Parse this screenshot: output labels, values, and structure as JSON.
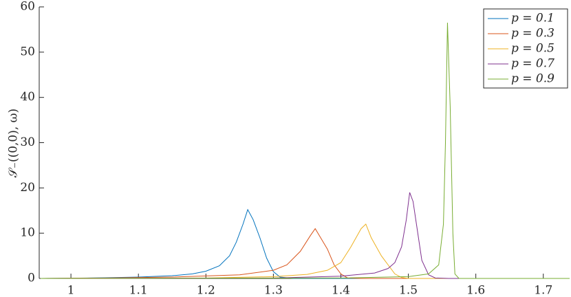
{
  "chart_data": {
    "type": "line",
    "ylabel": "𝒮₋((0,0), ω)",
    "xlim": [
      0.953,
      1.739
    ],
    "ylim": [
      0,
      60
    ],
    "xticks": [
      1,
      1.1,
      1.2,
      1.3,
      1.4,
      1.5,
      1.6,
      1.7
    ],
    "yticks": [
      0,
      10,
      20,
      30,
      40,
      50,
      60
    ],
    "legend": "top-right",
    "series": [
      {
        "name": "p = 0.1",
        "color": "#0072bd",
        "x": [
          0.955,
          1.0,
          1.05,
          1.1,
          1.15,
          1.18,
          1.2,
          1.22,
          1.235,
          1.245,
          1.255,
          1.262,
          1.27,
          1.28,
          1.29,
          1.3,
          1.31,
          1.33,
          1.739
        ],
        "values": [
          0,
          0.05,
          0.15,
          0.3,
          0.6,
          1.0,
          1.6,
          2.8,
          5,
          8,
          12,
          15.2,
          13,
          9,
          4.5,
          1.5,
          0.3,
          0,
          0
        ]
      },
      {
        "name": "p = 0.3",
        "color": "#d95319",
        "x": [
          0.955,
          1.05,
          1.15,
          1.25,
          1.3,
          1.32,
          1.34,
          1.355,
          1.362,
          1.37,
          1.38,
          1.39,
          1.4,
          1.41,
          1.43,
          1.739
        ],
        "values": [
          0,
          0.1,
          0.3,
          0.8,
          1.8,
          3,
          6,
          9.5,
          11,
          9,
          6.5,
          3,
          1,
          0.1,
          0,
          0
        ]
      },
      {
        "name": "p = 0.5",
        "color": "#edb120",
        "x": [
          0.955,
          1.2,
          1.3,
          1.35,
          1.38,
          1.4,
          1.415,
          1.43,
          1.437,
          1.445,
          1.46,
          1.47,
          1.48,
          1.49,
          1.5,
          1.739
        ],
        "values": [
          0,
          0.1,
          0.4,
          0.9,
          1.8,
          3.5,
          7,
          11,
          12,
          9,
          5,
          3,
          1,
          0.2,
          0,
          0
        ]
      },
      {
        "name": "p = 0.7",
        "color": "#7e2f8e",
        "x": [
          0.955,
          1.3,
          1.4,
          1.45,
          1.47,
          1.48,
          1.49,
          1.497,
          1.502,
          1.507,
          1.512,
          1.52,
          1.53,
          1.54,
          1.56,
          1.739
        ],
        "values": [
          0,
          0.1,
          0.5,
          1.2,
          2.2,
          3.5,
          7,
          13,
          19,
          17,
          12,
          4,
          0.8,
          0.1,
          0,
          0
        ]
      },
      {
        "name": "p = 0.9",
        "color": "#77ac30",
        "x": [
          0.955,
          1.4,
          1.5,
          1.53,
          1.545,
          1.552,
          1.555,
          1.558,
          1.562,
          1.566,
          1.569,
          1.575,
          1.739
        ],
        "values": [
          0,
          0.1,
          0.4,
          1,
          3,
          12,
          30,
          56.5,
          38,
          10,
          1,
          0,
          0
        ]
      }
    ]
  }
}
